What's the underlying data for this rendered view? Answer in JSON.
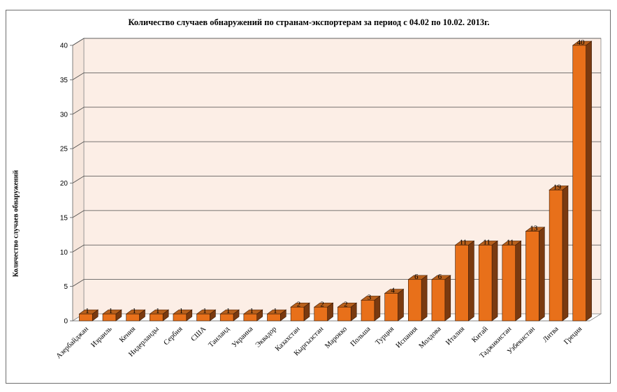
{
  "chart_data": {
    "type": "bar",
    "title": "Количество случаев обнаружений по странам-экспортерам за период с 04.02 по 10.02. 2013г.",
    "xlabel": "",
    "ylabel": "Количество случаев обнаружений",
    "ylim": [
      0,
      40
    ],
    "yticks": [
      "0",
      "5",
      "10",
      "15",
      "20",
      "25",
      "30",
      "35",
      "40"
    ],
    "grid": true,
    "style": "3d-column",
    "categories": [
      "Азербайджан",
      "Израиль",
      "Кения",
      "Нидерланды",
      "Сербия",
      "США",
      "Таиланд",
      "Украина",
      "Эквадор",
      "Казахстан",
      "Кыргызстан",
      "Марокко",
      "Польша",
      "Турция",
      "Испания",
      "Молдова",
      "Италия",
      "Китай",
      "Таджикистан",
      "Узбекистан",
      "Литва",
      "Греция"
    ],
    "values": [
      1,
      1,
      1,
      1,
      1,
      1,
      1,
      1,
      1,
      2,
      2,
      2,
      3,
      4,
      6,
      6,
      11,
      11,
      11,
      13,
      19,
      40
    ],
    "value_labels": [
      "1",
      "1",
      "1",
      "1",
      "1",
      "1",
      "1",
      "1",
      "1",
      "2",
      "2",
      "2",
      "3",
      "4",
      "6",
      "6",
      "11",
      "11",
      "11",
      "13",
      "19",
      "40"
    ],
    "colors": {
      "bar_front": "#e8701a",
      "bar_side": "#7a3a10",
      "bar_top": "#b8601c",
      "back_wall": "#fceee6",
      "floor": "#ffffff",
      "gridline": "#4a4a4a"
    }
  }
}
